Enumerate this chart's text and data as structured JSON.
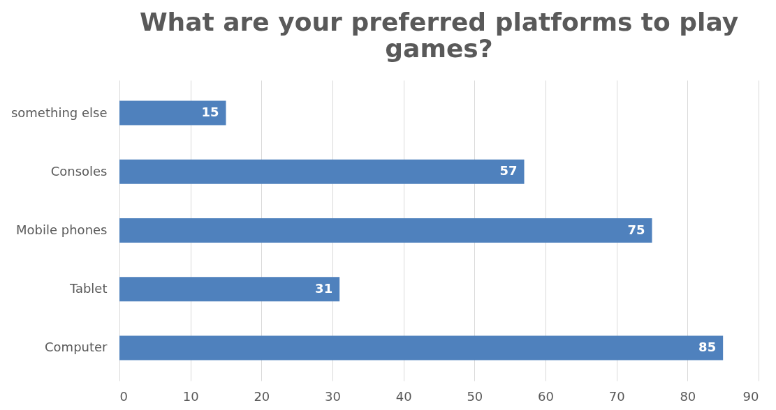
{
  "chart_data": {
    "type": "bar",
    "orientation": "horizontal",
    "title": "What are your preferred platforms to play games?",
    "categories": [
      "something else",
      "Consoles",
      "Mobile phones",
      "Tablet",
      "Computer"
    ],
    "values": [
      15,
      57,
      75,
      31,
      85
    ],
    "color": "#4f81bd",
    "xlim": [
      0,
      90
    ],
    "xticks": [
      0,
      10,
      20,
      30,
      40,
      50,
      60,
      70,
      80,
      90
    ],
    "grid": "x",
    "data_labels": true
  }
}
